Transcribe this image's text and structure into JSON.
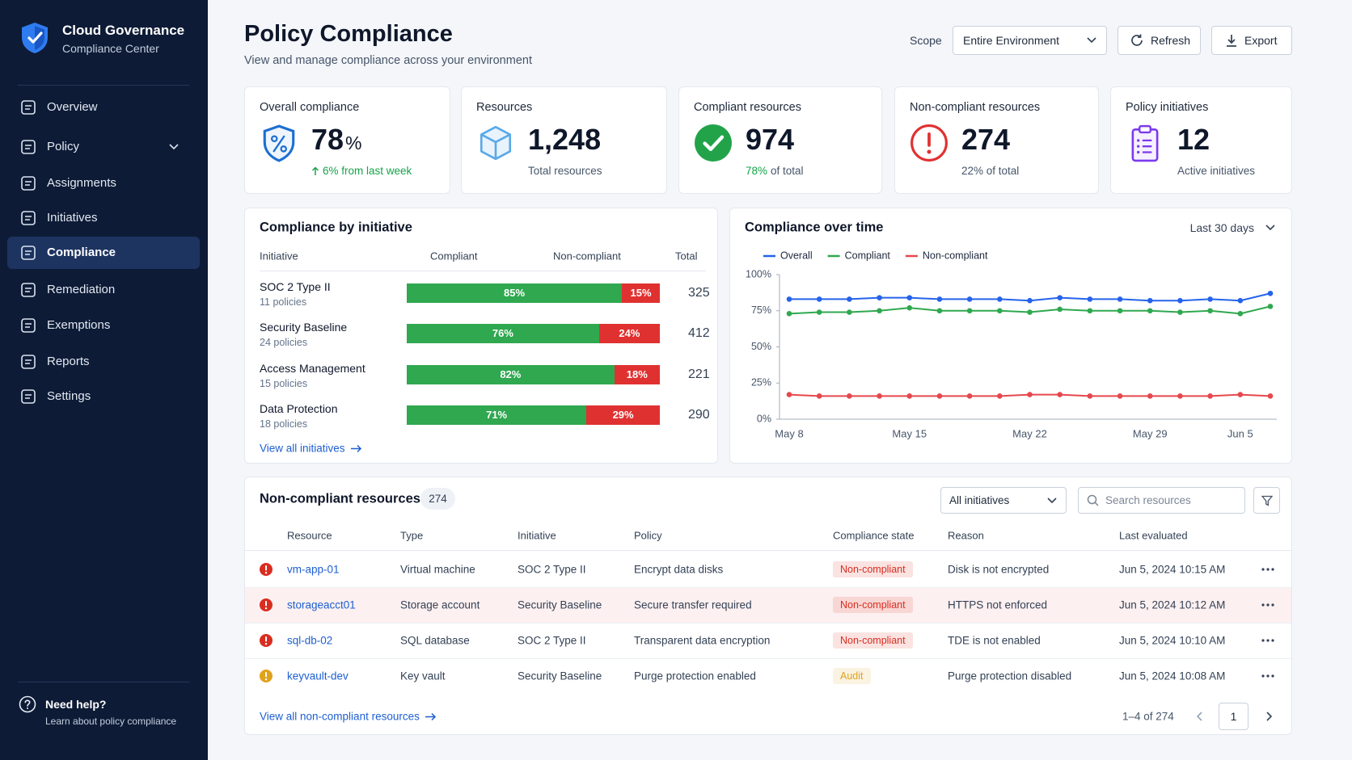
{
  "sidebar": {
    "brand": "Cloud Governance",
    "brand_sub": "Compliance Center",
    "nav": [
      "Overview",
      "Policy",
      "Assignments",
      "Initiatives",
      "Compliance",
      "Remediation",
      "Exemptions",
      "Reports",
      "Settings"
    ],
    "active": 4,
    "expandable": 1,
    "help_title": "Need help?",
    "help_sub": "Learn about policy compliance"
  },
  "header": {
    "title": "Policy Compliance",
    "subtitle": "View and manage compliance across your environment",
    "scope_label": "Scope",
    "scope_value": "Entire Environment",
    "refresh": "Refresh",
    "export": "Export"
  },
  "kpis": [
    {
      "label": "Overall compliance",
      "value": "78",
      "unit": "%",
      "note": "6% from last week",
      "note_color": "#16a34a"
    },
    {
      "label": "Resources",
      "value": "1,248",
      "note": "Total resources"
    },
    {
      "label": "Compliant resources",
      "value": "974",
      "note": "78%",
      "note_color": "#16a34a",
      "note_suffix": "of total"
    },
    {
      "label": "Non-compliant resources",
      "value": "274",
      "note": "22% of total"
    },
    {
      "label": "Policy initiatives",
      "value": "12",
      "note": "Active initiatives"
    }
  ],
  "initiatives": {
    "title": "Compliance by initiative",
    "columns": [
      "Initiative",
      "Compliant",
      "Non-compliant",
      "Total"
    ],
    "compliant_color": "#2fa84f",
    "non_compliant_color": "#e03131",
    "rows": [
      {
        "name": "SOC 2 Type II",
        "policies": "11 policies",
        "compliant": 85,
        "compliant_label": "85%",
        "non_compliant": 15,
        "non_compliant_label": "15%",
        "total": 325
      },
      {
        "name": "Security Baseline",
        "policies": "24 policies",
        "compliant": 76,
        "compliant_label": "76%",
        "non_compliant": 24,
        "non_compliant_label": "24%",
        "total": 412
      },
      {
        "name": "Access Management",
        "policies": "15 policies",
        "compliant": 82,
        "compliant_label": "82%",
        "non_compliant": 18,
        "non_compliant_label": "18%",
        "total": 221
      },
      {
        "name": "Data Protection",
        "policies": "18 policies",
        "compliant": 71,
        "compliant_label": "71%",
        "non_compliant": 29,
        "non_compliant_label": "29%",
        "total": 290
      }
    ],
    "link": "View all initiatives"
  },
  "chart_data": {
    "type": "line",
    "title": "Compliance over time",
    "range": "Last 30 days",
    "categories": [
      "May 8",
      null,
      null,
      null,
      "May 15",
      null,
      null,
      null,
      "May 22",
      null,
      null,
      null,
      "May 29",
      null,
      null,
      "Jun 5",
      null
    ],
    "series": [
      {
        "name": "Overall",
        "color": "#2563eb",
        "values": [
          83,
          83,
          83,
          84,
          84,
          83,
          83,
          83,
          82,
          84,
          83,
          83,
          82,
          82,
          83,
          82,
          87
        ]
      },
      {
        "name": "Compliant",
        "color": "#2fa84f",
        "values": [
          73,
          74,
          74,
          75,
          77,
          75,
          75,
          75,
          74,
          76,
          75,
          75,
          75,
          74,
          75,
          73,
          78
        ]
      },
      {
        "name": "Non-compliant",
        "color": "#e5484d",
        "values": [
          17,
          16,
          16,
          16,
          16,
          16,
          16,
          16,
          17,
          17,
          16,
          16,
          16,
          16,
          16,
          17,
          16
        ]
      }
    ],
    "ylim": [
      0,
      100
    ],
    "yticks": [
      {
        "value": 0,
        "label": "0%"
      },
      {
        "value": 25,
        "label": "25%"
      },
      {
        "value": 50,
        "label": "50%"
      },
      {
        "value": 75,
        "label": "75%"
      },
      {
        "value": 100,
        "label": "100%"
      }
    ],
    "grid": false,
    "legend": "top-left"
  },
  "table": {
    "title": "Non-compliant resources",
    "count": "274",
    "filter": "All initiatives",
    "search_placeholder": "Search resources",
    "columns": [
      "Resource",
      "Type",
      "Initiative",
      "Policy",
      "Compliance state",
      "Reason",
      "Last evaluated"
    ],
    "highlighted_row": 1,
    "rows": [
      {
        "color": "#d92d20",
        "cells": [
          "vm-app-01",
          "Virtual machine",
          "SOC 2 Type II",
          "Encrypt data disks",
          "Non-compliant",
          "Disk is not encrypted",
          "Jun 5, 2024 10:15 AM"
        ]
      },
      {
        "color": "#d92d20",
        "cells": [
          "storageacct01",
          "Storage account",
          "Security Baseline",
          "Secure transfer required",
          "Non-compliant",
          "HTTPS not enforced",
          "Jun 5, 2024 10:12 AM"
        ]
      },
      {
        "color": "#d92d20",
        "cells": [
          "sql-db-02",
          "SQL database",
          "SOC 2 Type II",
          "Transparent data encryption",
          "Non-compliant",
          "TDE is not enabled",
          "Jun 5, 2024 10:10 AM"
        ]
      },
      {
        "color": "#e0a21b",
        "cells": [
          "keyvault-dev",
          "Key vault",
          "Security Baseline",
          "Purge protection enabled",
          "Audit",
          "Purge protection disabled",
          "Jun 5, 2024 10:08 AM"
        ]
      }
    ],
    "link": "View all non-compliant resources",
    "pagination": "1–4 of 274",
    "page": "1"
  }
}
